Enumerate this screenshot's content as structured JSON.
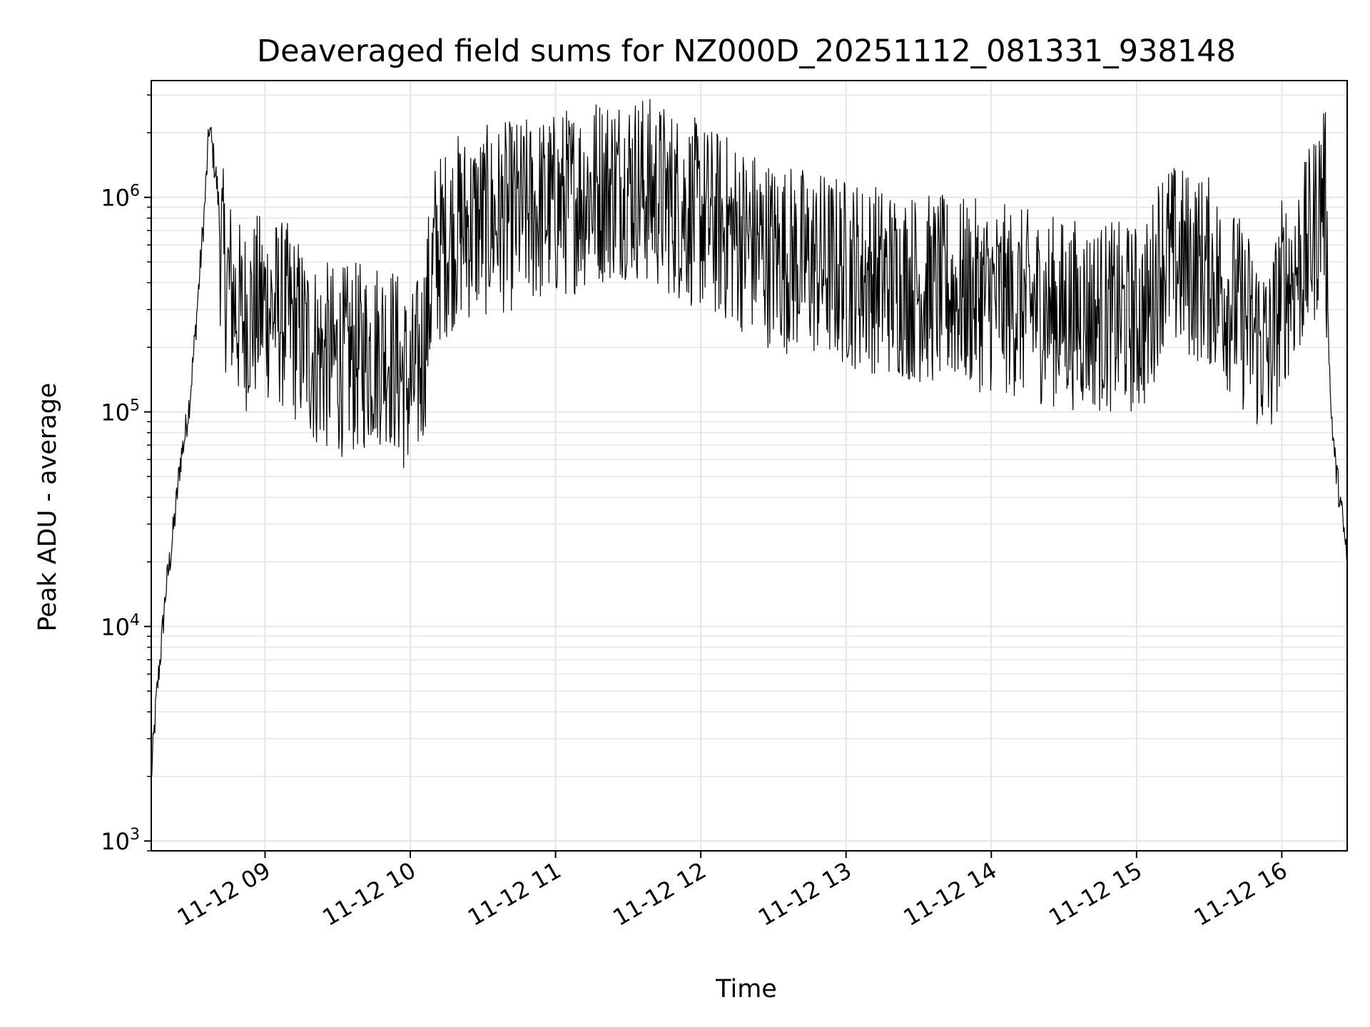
{
  "chart_data": {
    "type": "line",
    "title": "Deaveraged field sums for NZ000D_20251112_081331_938148",
    "xlabel": "Time",
    "ylabel": "Peak ADU - average",
    "y_scale": "log",
    "x_range": [
      "11-12 08:13",
      "11-12 16:27"
    ],
    "ylim": [
      900,
      3500000
    ],
    "x_ticks": [
      "11-12 09",
      "11-12 10",
      "11-12 11",
      "11-12 12",
      "11-12 13",
      "11-12 14",
      "11-12 15",
      "11-12 16"
    ],
    "y_ticks": [
      {
        "base": "10",
        "exp": "3",
        "value": 1000
      },
      {
        "base": "10",
        "exp": "4",
        "value": 10000
      },
      {
        "base": "10",
        "exp": "5",
        "value": 100000
      },
      {
        "base": "10",
        "exp": "6",
        "value": 1000000
      }
    ],
    "grid": true,
    "line_color": "#000000",
    "grid_color": "#e5e5e5",
    "series": [
      {
        "points": [
          [
            "11-12 08:13",
            2000
          ],
          [
            "11-12 08:15",
            4500
          ],
          [
            "11-12 08:17",
            8000
          ],
          [
            "11-12 08:19",
            15000
          ],
          [
            "11-12 08:21",
            22000
          ],
          [
            "11-12 08:23",
            35000
          ],
          [
            "11-12 08:25",
            60000
          ],
          [
            "11-12 08:27",
            80000
          ],
          [
            "11-12 08:29",
            120000
          ],
          [
            "11-12 08:31",
            220000
          ],
          [
            "11-12 08:33",
            450000
          ],
          [
            "11-12 08:35",
            900000
          ],
          [
            "11-12 08:37",
            2200000
          ],
          [
            "11-12 08:40",
            1200000
          ],
          [
            "11-12 08:43",
            500000
          ],
          [
            "11-12 08:50",
            300000
          ],
          [
            "11-12 09:00",
            350000
          ],
          [
            "11-12 09:10",
            300000
          ],
          [
            "11-12 09:20",
            210000
          ],
          [
            "11-12 09:30",
            190000
          ],
          [
            "11-12 09:40",
            200000
          ],
          [
            "11-12 09:50",
            220000
          ],
          [
            "11-12 09:55",
            180000
          ],
          [
            "11-12 10:00",
            140000
          ],
          [
            "11-12 10:05",
            200000
          ],
          [
            "11-12 10:10",
            600000
          ],
          [
            "11-12 10:20",
            800000
          ],
          [
            "11-12 10:30",
            850000
          ],
          [
            "11-12 10:40",
            900000
          ],
          [
            "11-12 10:50",
            950000
          ],
          [
            "11-12 11:00",
            1000000
          ],
          [
            "11-12 11:15",
            1200000
          ],
          [
            "11-12 11:30",
            1300000
          ],
          [
            "11-12 11:45",
            1100000
          ],
          [
            "11-12 12:00",
            900000
          ],
          [
            "11-12 12:15",
            750000
          ],
          [
            "11-12 12:30",
            600000
          ],
          [
            "11-12 12:45",
            550000
          ],
          [
            "11-12 13:00",
            500000
          ],
          [
            "11-12 13:30",
            420000
          ],
          [
            "11-12 14:00",
            380000
          ],
          [
            "11-12 14:30",
            320000
          ],
          [
            "11-12 15:00",
            300000
          ],
          [
            "11-12 15:05",
            320000
          ],
          [
            "11-12 15:10",
            600000
          ],
          [
            "11-12 15:30",
            500000
          ],
          [
            "11-12 15:45",
            300000
          ],
          [
            "11-12 15:55",
            200000
          ],
          [
            "11-12 16:00",
            400000
          ],
          [
            "11-12 16:10",
            600000
          ],
          [
            "11-12 16:15",
            900000
          ],
          [
            "11-12 16:17",
            1300000
          ],
          [
            "11-12 16:18",
            1000000
          ],
          [
            "11-12 16:20",
            120000
          ],
          [
            "11-12 16:22",
            60000
          ],
          [
            "11-12 16:24",
            40000
          ],
          [
            "11-12 16:27",
            21000
          ]
        ]
      }
    ]
  }
}
